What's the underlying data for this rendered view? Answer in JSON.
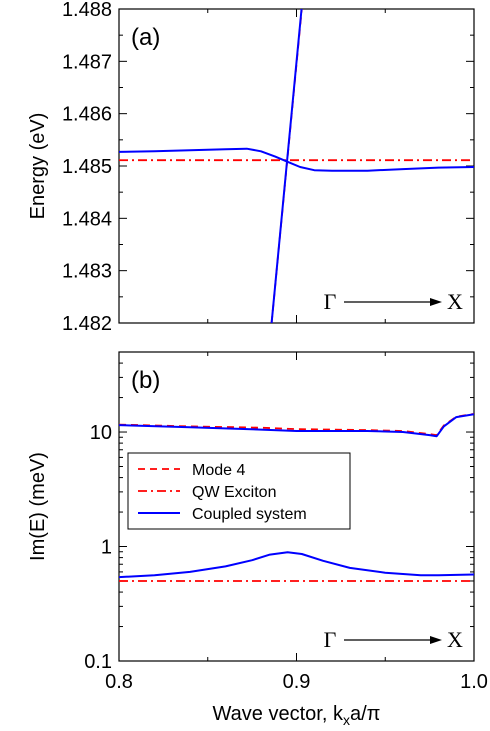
{
  "chart_data": [
    {
      "type": "line",
      "panel_label": "(a)",
      "xlabel": "",
      "ylabel": "Energy  (eV)",
      "xlim": [
        0.8,
        1.0
      ],
      "ylim": [
        1.482,
        1.488
      ],
      "x_ticks": [
        0.8,
        0.9,
        1.0
      ],
      "y_ticks": [
        "1.482",
        "1.483",
        "1.484",
        "1.485",
        "1.486",
        "1.487",
        "1.488"
      ],
      "annotation": {
        "from": "Γ",
        "to": "X"
      },
      "series": [
        {
          "style": "dash",
          "color": "#ff0000",
          "points": [
            [
              0.886,
              1.482
            ],
            [
              0.903,
              1.488
            ]
          ]
        },
        {
          "style": "dashdot",
          "color": "#ff0000",
          "points": [
            [
              0.8,
              1.48511
            ],
            [
              1.0,
              1.48511
            ]
          ]
        },
        {
          "style": "solid",
          "color": "#0000ff",
          "points": [
            [
              0.8,
              1.48527
            ],
            [
              0.82,
              1.48528
            ],
            [
              0.84,
              1.4853
            ],
            [
              0.86,
              1.48532
            ],
            [
              0.872,
              1.48533
            ],
            [
              0.88,
              1.48528
            ],
            [
              0.888,
              1.48518
            ],
            [
              0.895,
              1.48508
            ],
            [
              0.902,
              1.48498
            ],
            [
              0.91,
              1.48492
            ],
            [
              0.92,
              1.48491
            ],
            [
              0.94,
              1.48491
            ],
            [
              0.96,
              1.48494
            ],
            [
              0.98,
              1.48497
            ],
            [
              1.0,
              1.48498
            ]
          ]
        },
        {
          "style": "solid",
          "color": "#0000ff",
          "points": [
            [
              0.886,
              1.482
            ],
            [
              0.903,
              1.48805
            ]
          ]
        }
      ]
    },
    {
      "type": "line",
      "panel_label": "(b)",
      "xlabel": "Wave vector,  k",
      "xlabel_sub": "x",
      "xlabel_tail": "a/π",
      "ylabel": "Im(E)  (meV)",
      "xlim": [
        0.8,
        1.0
      ],
      "ylim": [
        0.1,
        50
      ],
      "yscale": "log",
      "x_ticks": [
        "0.8",
        "0.9",
        "1.0"
      ],
      "y_ticks": [
        {
          "value": 0.1,
          "label": "0.1"
        },
        {
          "value": 1,
          "label": "1"
        },
        {
          "value": 10,
          "label": "10"
        }
      ],
      "annotation": {
        "from": "Γ",
        "to": "X"
      },
      "legend": {
        "position": "center-left",
        "entries": [
          {
            "label": "Mode 4",
            "style": "dash",
            "color": "#ff0000"
          },
          {
            "label": "QW Exciton",
            "style": "dashdot",
            "color": "#ff0000"
          },
          {
            "label": "Coupled system",
            "style": "solid",
            "color": "#0000ff"
          }
        ]
      },
      "series": [
        {
          "name": "Mode 4",
          "style": "dash",
          "color": "#ff0000",
          "points": [
            [
              0.8,
              11.6
            ],
            [
              0.84,
              11.2
            ],
            [
              0.88,
              10.9
            ],
            [
              0.9,
              10.6
            ],
            [
              0.94,
              10.4
            ],
            [
              0.96,
              10.2
            ],
            [
              0.975,
              9.6
            ],
            [
              0.979,
              9.4
            ],
            [
              0.983,
              11.4
            ],
            [
              0.99,
              13.6
            ],
            [
              1.0,
              14.4
            ]
          ]
        },
        {
          "name": "QW Exciton",
          "style": "dashdot",
          "color": "#ff0000",
          "points": [
            [
              0.8,
              0.5
            ],
            [
              1.0,
              0.5
            ]
          ]
        },
        {
          "name": "Coupled system",
          "style": "solid",
          "color": "#0000ff",
          "points": [
            [
              0.8,
              11.5
            ],
            [
              0.84,
              11.0
            ],
            [
              0.88,
              10.5
            ],
            [
              0.9,
              10.2
            ],
            [
              0.94,
              10.2
            ],
            [
              0.96,
              10.0
            ],
            [
              0.975,
              9.4
            ],
            [
              0.979,
              9.2
            ],
            [
              0.983,
              11.2
            ],
            [
              0.99,
              13.5
            ],
            [
              1.0,
              14.3
            ]
          ]
        },
        {
          "name": "Coupled system",
          "style": "solid",
          "color": "#0000ff",
          "points": [
            [
              0.8,
              0.54
            ],
            [
              0.82,
              0.56
            ],
            [
              0.84,
              0.6
            ],
            [
              0.86,
              0.67
            ],
            [
              0.875,
              0.76
            ],
            [
              0.885,
              0.85
            ],
            [
              0.895,
              0.89
            ],
            [
              0.903,
              0.86
            ],
            [
              0.915,
              0.75
            ],
            [
              0.93,
              0.65
            ],
            [
              0.95,
              0.59
            ],
            [
              0.97,
              0.56
            ],
            [
              0.98,
              0.56
            ],
            [
              1.0,
              0.57
            ]
          ]
        }
      ]
    }
  ]
}
